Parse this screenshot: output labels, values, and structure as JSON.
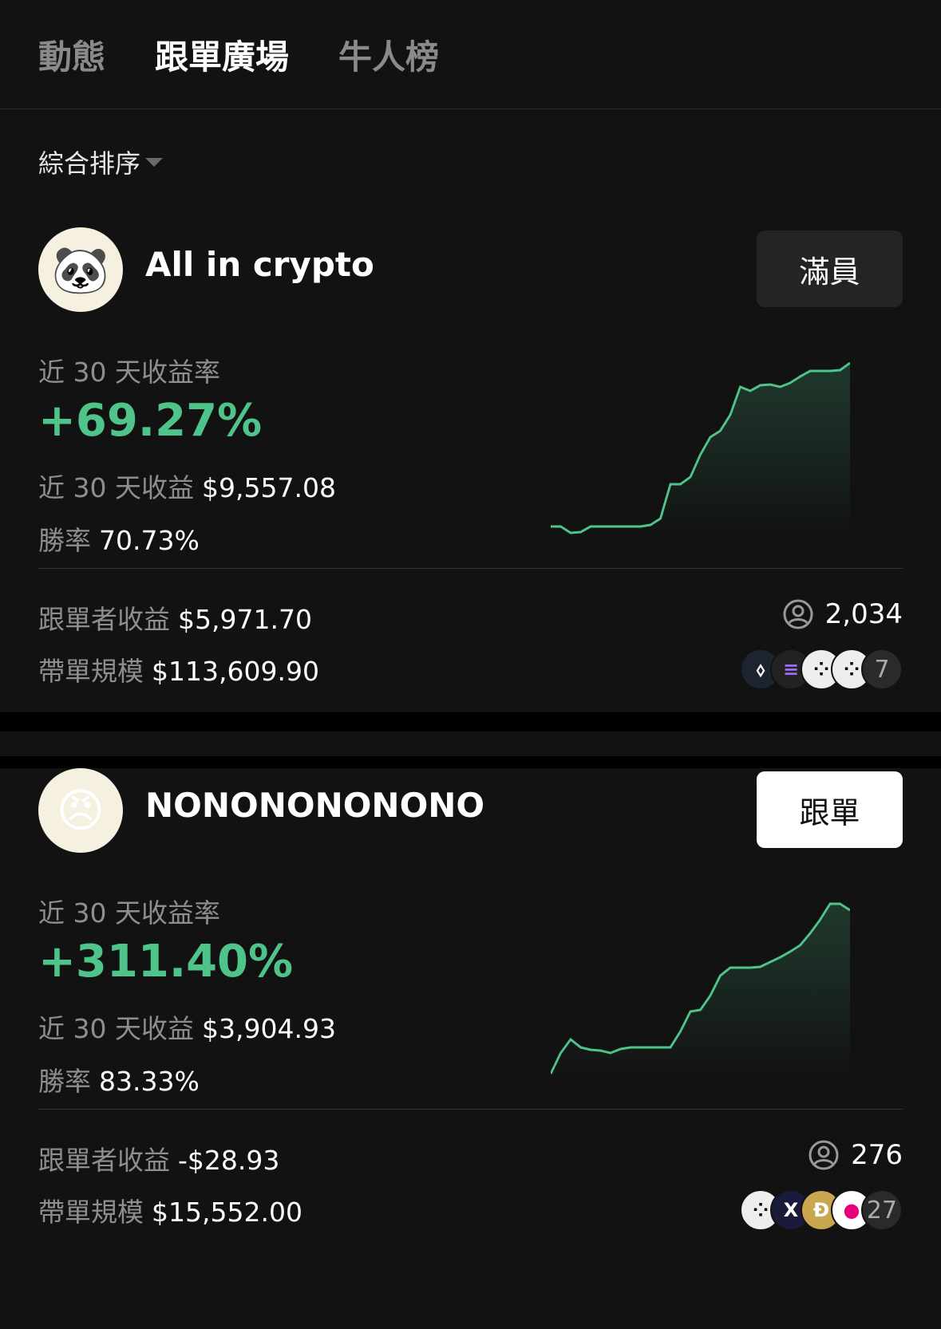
{
  "tabs": [
    {
      "label": "動態"
    },
    {
      "label": "跟單廣場"
    },
    {
      "label": "牛人榜"
    }
  ],
  "sort": {
    "label": "綜合排序"
  },
  "colors": {
    "accent": "#4fc48a",
    "background": "#121212"
  },
  "cards": [
    {
      "name": "All in crypto",
      "button": "滿員",
      "roi_label": "近 30 天收益率",
      "roi": "+69.27%",
      "pnl_label": "近 30 天收益",
      "pnl": "$9,557.08",
      "winrate_label": "勝率",
      "winrate": "70.73%",
      "follower_pnl_label": "跟單者收益",
      "follower_pnl": "$5,971.70",
      "aum_label": "帶單規模",
      "aum": "$113,609.90",
      "followers": "2,034",
      "coins": [
        "EOS",
        "SOL",
        "coin",
        "coin"
      ],
      "more_coins": "7",
      "sparkline": [
        10,
        10,
        2,
        3,
        10,
        10,
        10,
        10,
        10,
        10,
        12,
        20,
        63,
        63,
        72,
        100,
        122,
        130,
        150,
        185,
        180,
        187,
        188,
        185,
        190,
        198,
        205,
        205,
        205,
        206,
        215
      ]
    },
    {
      "name": "NONONONONONO",
      "button": "跟單",
      "roi_label": "近 30 天收益率",
      "roi": "+311.40%",
      "pnl_label": "近 30 天收益",
      "pnl": "$3,904.93",
      "winrate_label": "勝率",
      "winrate": "83.33%",
      "follower_pnl_label": "跟單者收益",
      "follower_pnl": "-$28.93",
      "aum_label": "帶單規模",
      "aum": "$15,552.00",
      "followers": "276",
      "coins": [
        "coin",
        "X",
        "DOGE",
        "DOT"
      ],
      "more_coins": "27",
      "sparkline": [
        2,
        28,
        45,
        35,
        32,
        31,
        28,
        33,
        35,
        35,
        35,
        35,
        35,
        55,
        80,
        82,
        100,
        125,
        135,
        135,
        135,
        136,
        142,
        148,
        155,
        163,
        178,
        195,
        215,
        215,
        207
      ]
    }
  ]
}
